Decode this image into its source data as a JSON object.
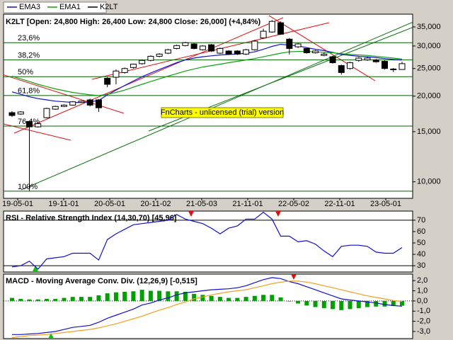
{
  "chart_data": [
    {
      "type": "candlestick",
      "title": "K2LT [Open: 24,800 High: 26,400 Low: 24,800 Close: 26,000] (+4,84%)",
      "log_scale": true,
      "ylim": [
        8750,
        38800
      ],
      "yticks": [
        {
          "value": 10000,
          "label": "10,000"
        },
        {
          "value": 15000,
          "label": "15,000"
        },
        {
          "value": 20000,
          "label": "20,000"
        },
        {
          "value": 25000,
          "label": "25,000"
        },
        {
          "value": 30000,
          "label": "30,000"
        },
        {
          "value": 35000,
          "label": "35,000"
        }
      ],
      "xtick_labels": [
        "19-05-01",
        "19-11-01",
        "20-05-01",
        "20-11-02",
        "21-05-03",
        "21-11-01",
        "22-05-02",
        "22-11-01",
        "23-05-01"
      ],
      "candles": {
        "name": "K2LT",
        "color": "#000000",
        "up_color": "#ffffff",
        "down_color": "#000000",
        "open": [
          17500,
          17300,
          16300,
          15600,
          16800,
          18000,
          18400,
          18600,
          19000,
          19400,
          19400,
          23100,
          23300,
          24200,
          25200,
          26000,
          26700,
          27600,
          28300,
          29400,
          30100,
          30500,
          29100,
          30300,
          28300,
          28800,
          28800,
          28100,
          29100,
          32000,
          33600,
          36200,
          31700,
          29800,
          29400,
          28400,
          27800,
          27500,
          25600,
          25000,
          26700,
          26800,
          26800,
          26500,
          24900,
          24800
        ],
        "high": [
          17700,
          17700,
          16400,
          16200,
          18200,
          18500,
          18700,
          19200,
          19300,
          19600,
          19500,
          23300,
          24800,
          25200,
          26000,
          26900,
          27800,
          28300,
          29300,
          30300,
          31000,
          30700,
          30200,
          30500,
          29600,
          29000,
          29000,
          29300,
          31500,
          34500,
          37000,
          36600,
          32000,
          30700,
          29600,
          29000,
          28400,
          27700,
          25800,
          26400,
          27400,
          27500,
          27000,
          26700,
          25100,
          26400
        ],
        "low": [
          16900,
          17200,
          9300,
          15500,
          16700,
          17900,
          18300,
          18500,
          18900,
          18400,
          17600,
          21500,
          22000,
          24000,
          25000,
          25800,
          26500,
          27400,
          28100,
          29200,
          29900,
          29200,
          28900,
          28600,
          28100,
          27900,
          27900,
          27900,
          28900,
          31800,
          33400,
          32800,
          28000,
          29500,
          28200,
          28200,
          27600,
          26000,
          23800,
          24800,
          26400,
          26600,
          26200,
          24800,
          24300,
          24800
        ],
        "close": [
          17100,
          17600,
          15600,
          16000,
          18100,
          18400,
          18600,
          19100,
          19200,
          18600,
          18200,
          22000,
          24500,
          25000,
          25900,
          26700,
          27600,
          28100,
          29100,
          30100,
          30800,
          29400,
          30000,
          28800,
          29400,
          28100,
          28100,
          29100,
          31200,
          33800,
          36600,
          33000,
          29400,
          30500,
          28400,
          28800,
          28100,
          26200,
          24200,
          26200,
          27200,
          27200,
          26400,
          25000,
          24800,
          26000
        ]
      },
      "series": [
        {
          "name": "EMA3",
          "color": "#1010d0",
          "values": [
            20700,
            20300,
            19900,
            19600,
            19400,
            19200,
            19100,
            19000,
            19000,
            19100,
            19300,
            20200,
            21000,
            21800,
            22600,
            23400,
            24100,
            24800,
            25500,
            26200,
            26800,
            27200,
            27500,
            27700,
            27900,
            28000,
            28100,
            28300,
            28600,
            29200,
            29900,
            30400,
            30200,
            30000,
            29600,
            29200,
            28900,
            28500,
            28000,
            27800,
            27600,
            27500,
            27300,
            27100,
            26900,
            26800
          ]
        },
        {
          "name": "EMA1",
          "color": "#10a010",
          "values": [
            23500,
            23000,
            22500,
            22000,
            21600,
            21200,
            20900,
            20600,
            20400,
            20200,
            20100,
            20300,
            20600,
            21000,
            21500,
            22000,
            22500,
            23000,
            23500,
            24000,
            24500,
            24900,
            25300,
            25600,
            25900,
            26200,
            26500,
            26800,
            27100,
            27500,
            27900,
            28300,
            28600,
            28700,
            28700,
            28600,
            28500,
            28400,
            28200,
            28000,
            27900,
            27800,
            27600,
            27400,
            27200,
            27000
          ]
        }
      ],
      "level_color": "#006000",
      "levels": [
        {
          "label": "23,6%",
          "value": 30800
        },
        {
          "label": "38,2%",
          "value": 26800
        },
        {
          "label": "50%",
          "value": 23400
        },
        {
          "label": "61,8%",
          "value": 20100
        },
        {
          "label": "76,4%",
          "value": 15700
        },
        {
          "label": "100%",
          "value": 9270
        }
      ],
      "annotation": "FnCharts - unlicensed (trial) version"
    },
    {
      "type": "line",
      "title": "RSI - Relative Strength Index (14,30,70) [45,96]",
      "color": "#1010d0",
      "values": [
        29,
        30,
        34,
        27,
        36,
        37,
        38,
        41,
        41,
        41,
        35,
        53,
        58,
        62,
        66,
        67,
        68,
        69,
        70,
        75,
        71,
        69,
        67,
        63,
        58,
        63,
        65,
        71,
        71,
        77,
        71,
        56,
        56,
        51,
        52,
        49,
        43,
        38,
        47,
        48,
        48,
        47,
        42,
        41,
        41,
        45.96
      ],
      "ylim": [
        24.5,
        78
      ],
      "yticks": [
        30,
        40,
        50,
        60,
        70
      ],
      "hlines": [
        70,
        30
      ]
    },
    {
      "type": "macd",
      "title": "MACD - Moving Average Conv. Div. (12,26,9) [-0,515]",
      "ylim": [
        -3.7,
        2.64
      ],
      "yticks": [
        {
          "value": 2,
          "label": "2,0"
        },
        {
          "value": 1,
          "label": "1,0"
        },
        {
          "value": 0,
          "label": "0,0"
        },
        {
          "value": -1,
          "label": "-1,0"
        },
        {
          "value": -2,
          "label": "-2,0"
        },
        {
          "value": -3,
          "label": "-3,0"
        }
      ],
      "histogram": {
        "color": "#00a000",
        "values": [
          0.3,
          0.2,
          0.15,
          0.15,
          0.2,
          0.2,
          0.3,
          0.4,
          0.4,
          0.4,
          0.55,
          0.75,
          0.85,
          0.9,
          0.95,
          1.1,
          1.0,
          1.0,
          0.95,
          0.95,
          0.9,
          0.7,
          0.6,
          0.5,
          0.4,
          0.3,
          0.3,
          0.4,
          0.5,
          0.6,
          0.6,
          0.35,
          -0.05,
          -0.25,
          -0.45,
          -0.6,
          -0.7,
          -0.8,
          -0.9,
          -0.8,
          -0.7,
          -0.6,
          -0.55,
          -0.55,
          -0.5,
          -0.465
        ]
      },
      "series": [
        {
          "color": "#1010d0",
          "values": [
            -3.3,
            -3.3,
            -3.25,
            -3.2,
            -3.1,
            -3.0,
            -2.8,
            -2.6,
            -2.5,
            -2.4,
            -2.1,
            -1.7,
            -1.4,
            -1.1,
            -0.8,
            -0.4,
            -0.2,
            0.1,
            0.3,
            0.6,
            0.8,
            0.9,
            1.0,
            1.1,
            1.15,
            1.2,
            1.3,
            1.5,
            1.8,
            2.1,
            2.3,
            2.2,
            1.9,
            1.7,
            1.4,
            1.1,
            0.8,
            0.5,
            0.2,
            0.1,
            0.0,
            -0.1,
            -0.2,
            -0.35,
            -0.45,
            -0.515
          ]
        },
        {
          "color": "#f0a020",
          "values": [
            -3.6,
            -3.5,
            -3.4,
            -3.35,
            -3.3,
            -3.2,
            -3.1,
            -3.0,
            -2.9,
            -2.8,
            -2.65,
            -2.45,
            -2.25,
            -2.0,
            -1.75,
            -1.5,
            -1.2,
            -0.9,
            -0.65,
            -0.35,
            -0.1,
            0.2,
            0.4,
            0.6,
            0.75,
            0.9,
            1.0,
            1.1,
            1.3,
            1.5,
            1.7,
            1.85,
            1.95,
            1.95,
            1.85,
            1.7,
            1.5,
            1.3,
            1.1,
            0.9,
            0.7,
            0.5,
            0.35,
            0.2,
            0.05,
            -0.05
          ]
        }
      ]
    }
  ]
}
